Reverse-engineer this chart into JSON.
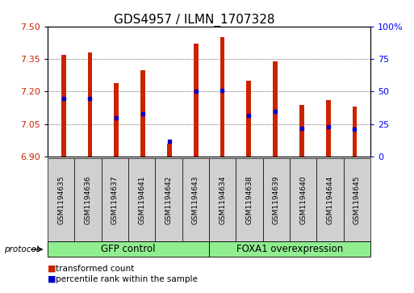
{
  "title": "GDS4957 / ILMN_1707328",
  "samples": [
    "GSM1194635",
    "GSM1194636",
    "GSM1194637",
    "GSM1194641",
    "GSM1194642",
    "GSM1194643",
    "GSM1194634",
    "GSM1194638",
    "GSM1194639",
    "GSM1194640",
    "GSM1194644",
    "GSM1194645"
  ],
  "transformed_count": [
    7.37,
    7.38,
    7.24,
    7.3,
    6.96,
    7.42,
    7.45,
    7.25,
    7.34,
    7.14,
    7.16,
    7.13
  ],
  "percentile_rank": [
    45,
    45,
    30,
    33,
    12,
    50,
    51,
    32,
    35,
    22,
    23,
    21
  ],
  "y_min": 6.9,
  "y_max": 7.5,
  "y_ticks": [
    6.9,
    7.05,
    7.2,
    7.35,
    7.5
  ],
  "right_y_ticks": [
    0,
    25,
    50,
    75,
    100
  ],
  "right_y_labels": [
    "0",
    "25",
    "50",
    "75",
    "100%"
  ],
  "bar_color": "#cc2200",
  "dot_color": "#0000cc",
  "plot_bg_color": "#ffffff",
  "sample_box_color": "#d0d0d0",
  "group1_label": "GFP control",
  "group2_label": "FOXA1 overexpression",
  "group1_count": 6,
  "group2_count": 6,
  "group_bg_color": "#90ee90",
  "legend_label1": "transformed count",
  "legend_label2": "percentile rank within the sample",
  "protocol_label": "protocol",
  "title_fontsize": 11,
  "tick_fontsize": 8,
  "sample_fontsize": 6.5,
  "group_fontsize": 8.5,
  "legend_fontsize": 7.5,
  "bar_width": 0.18
}
